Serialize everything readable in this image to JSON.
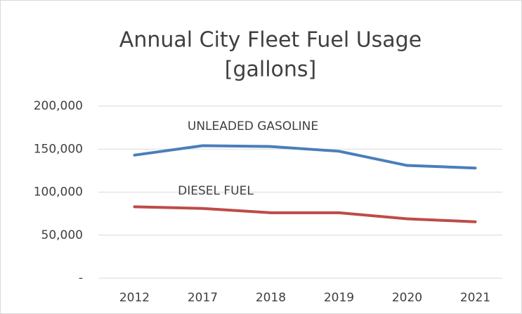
{
  "chart_data": {
    "type": "line",
    "title": "Annual City Fleet Fuel Usage",
    "subtitle": "[gallons]",
    "categories": [
      "2012",
      "2017",
      "2018",
      "2019",
      "2020",
      "2021"
    ],
    "series": [
      {
        "name": "UNLEADED GASOLINE",
        "color": "#4a7ebb",
        "values": [
          143000,
          154000,
          153000,
          147500,
          131000,
          128000
        ]
      },
      {
        "name": "DIESEL FUEL",
        "color": "#be4b48",
        "values": [
          83000,
          81000,
          76000,
          76000,
          69000,
          65500
        ]
      }
    ],
    "ylim": [
      0,
      200000
    ],
    "yticks": [
      {
        "value": 0,
        "label": "-"
      },
      {
        "value": 50000,
        "label": "50,000"
      },
      {
        "value": 100000,
        "label": "100,000"
      },
      {
        "value": 150000,
        "label": "150,000"
      },
      {
        "value": 200000,
        "label": "200,000"
      }
    ],
    "grid": true
  }
}
